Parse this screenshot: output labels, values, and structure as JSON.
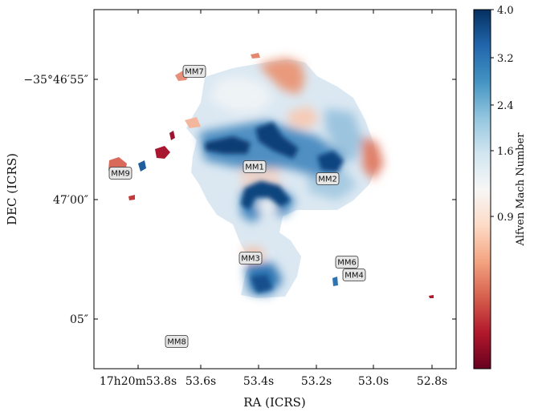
{
  "chart_data": {
    "type": "heatmap",
    "title": "",
    "xlabel": "RA (ICRS)",
    "ylabel": "DEC (ICRS)",
    "x_ticks": [
      "17h20m53.8s",
      "53.6s",
      "53.4s",
      "53.2s",
      "53.0s",
      "52.8s"
    ],
    "y_ticks": [
      "−35°46′55″",
      "47′00″",
      "05″"
    ],
    "colorbar": {
      "label": "Alfven Mach Number",
      "ticks": [
        "4.0",
        "3.2",
        "2.4",
        "1.6",
        "0.9"
      ],
      "range": [
        0.4,
        4.0
      ],
      "colormap": "RdBu",
      "colors": [
        "#67001f",
        "#b2182b",
        "#d6604d",
        "#f4a582",
        "#fddbc7",
        "#f7f7f7",
        "#d1e5f0",
        "#92c5de",
        "#4393c3",
        "#2166ac",
        "#053061"
      ]
    },
    "sources": [
      {
        "name": "MM1",
        "value": 2.4
      },
      {
        "name": "MM2",
        "value": 2.6
      },
      {
        "name": "MM3",
        "value": 2.8
      },
      {
        "name": "MM4",
        "value": 3.2
      },
      {
        "name": "MM6",
        "value": 3.0
      },
      {
        "name": "MM7",
        "value": 0.8
      },
      {
        "name": "MM8",
        "value": null
      },
      {
        "name": "MM9",
        "value": 0.7
      }
    ]
  }
}
